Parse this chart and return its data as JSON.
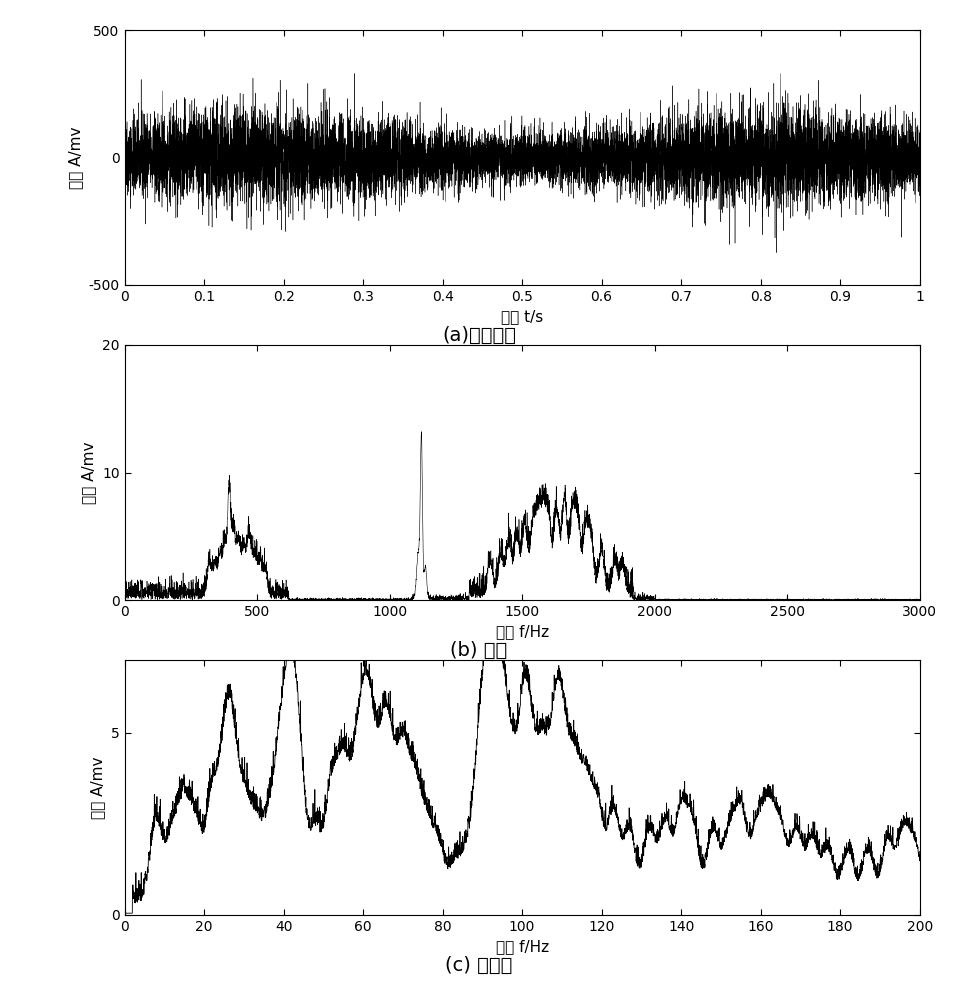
{
  "fig_width": 9.58,
  "fig_height": 10.0,
  "dpi": 100,
  "background_color": "#ffffff",
  "subplot_a": {
    "caption": "(a)时域波形",
    "xlabel": "时间 t/s",
    "ylabel": "幅値 A/mv",
    "xlim": [
      0,
      1
    ],
    "ylim": [
      -500,
      500
    ],
    "xticks": [
      0,
      0.1,
      0.2,
      0.3,
      0.4,
      0.5,
      0.6,
      0.7,
      0.8,
      0.9,
      1
    ],
    "xticklabels": [
      "0",
      "0.1",
      "0.2",
      "0.3",
      "0.4",
      "0.5",
      "0.6",
      "0.7",
      "0.8",
      "0.9",
      "1"
    ],
    "yticks": [
      -500,
      0,
      500
    ],
    "yticklabels": [
      "-500",
      "0",
      "500"
    ],
    "seed": 42,
    "n_points": 10000,
    "noise_std": 75,
    "line_color": "#000000",
    "line_width": 0.3
  },
  "subplot_b": {
    "caption": "(b) 频谱",
    "xlabel": "频率 f/Hz",
    "ylabel": "幅値 A/mv",
    "xlim": [
      0,
      3000
    ],
    "ylim": [
      0,
      20
    ],
    "xticks": [
      0,
      500,
      1000,
      1500,
      2000,
      2500,
      3000
    ],
    "xticklabels": [
      "0",
      "500",
      "1000",
      "1500",
      "2000",
      "2500",
      "3000"
    ],
    "yticks": [
      0,
      10,
      20
    ],
    "yticklabels": [
      "0",
      "10",
      "20"
    ],
    "seed": 55,
    "n_points": 6000,
    "line_color": "#000000",
    "line_width": 0.4
  },
  "subplot_c": {
    "caption": "(c) 包络谱",
    "xlabel": "频率 f/Hz",
    "ylabel": "幅値 A/mv",
    "xlim": [
      0,
      200
    ],
    "ylim": [
      0,
      7
    ],
    "xticks": [
      0,
      20,
      40,
      60,
      80,
      100,
      120,
      140,
      160,
      180,
      200
    ],
    "xticklabels": [
      "0",
      "20",
      "40",
      "60",
      "80",
      "100",
      "120",
      "140",
      "160",
      "180",
      "200"
    ],
    "yticks": [
      0,
      5
    ],
    "yticklabels": [
      "0",
      "5"
    ],
    "seed": 99,
    "n_points": 4000,
    "line_color": "#000000",
    "line_width": 0.6
  }
}
